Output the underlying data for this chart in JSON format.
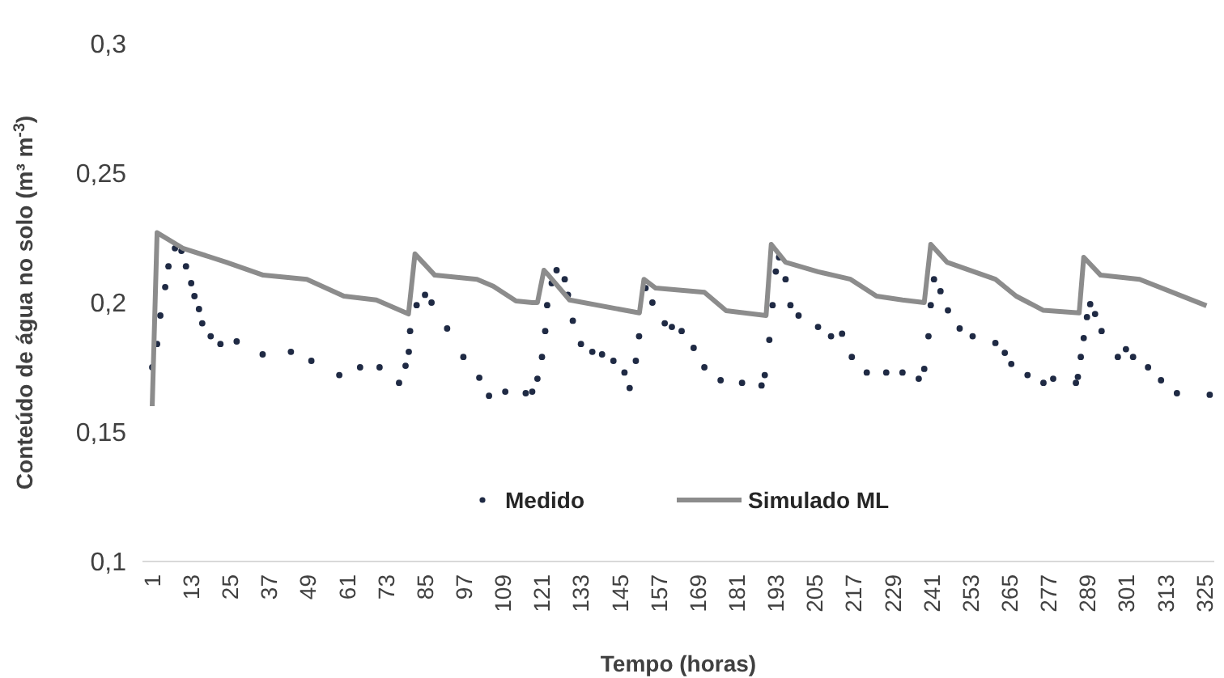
{
  "chart_data": {
    "type": "line",
    "xlabel": "Tempo (horas)",
    "ylabel": "Conteúdo de água no solo (m³ m$^{-3}$)",
    "xlim": [
      -2,
      328
    ],
    "xticks": [
      1,
      13,
      25,
      37,
      49,
      61,
      73,
      85,
      97,
      109,
      121,
      133,
      145,
      157,
      169,
      181,
      193,
      205,
      217,
      229,
      241,
      253,
      265,
      277,
      289,
      301,
      313,
      325
    ],
    "ylim": [
      0.1,
      0.3
    ],
    "yticks": [
      {
        "value": 0.1,
        "label": "0,1"
      },
      {
        "value": 0.15,
        "label": "0,15"
      },
      {
        "value": 0.2,
        "label": "0,2"
      },
      {
        "value": 0.25,
        "label": "0,25"
      },
      {
        "value": 0.3,
        "label": "0,3"
      }
    ],
    "grid": false,
    "legend": "bottom",
    "series": [
      {
        "name": "Medido",
        "type": "scatter",
        "marker": "circle",
        "color": "#1f2a44",
        "x": [
          1,
          2.5,
          3.5,
          5,
          6,
          8,
          10,
          11.4,
          13,
          14,
          15.4,
          16.4,
          19,
          22,
          27,
          35,
          43.7,
          50,
          58.6,
          65,
          71,
          77,
          79,
          80,
          80.4,
          82.4,
          85,
          87,
          91.8,
          96.8,
          101.7,
          104.7,
          109.7,
          116,
          118,
          119.6,
          121,
          122,
          122.6,
          124,
          125.5,
          128,
          129,
          130.5,
          133,
          136.5,
          139.5,
          143,
          146.4,
          148,
          149.9,
          150.9,
          152.9,
          155,
          158.8,
          161,
          164,
          167.7,
          171,
          176,
          182.6,
          188.6,
          189.6,
          191,
          192,
          193,
          194,
          196,
          197.5,
          200,
          206,
          210,
          213.4,
          216.4,
          221,
          227,
          232,
          237,
          238.7,
          240,
          240.7,
          241.7,
          243.7,
          246,
          249.6,
          253.6,
          260.6,
          263.5,
          265.5,
          270.5,
          275.4,
          278.4,
          285.4,
          286,
          286.9,
          287.8,
          288.8,
          289.8,
          291.3,
          293.3,
          298.3,
          300.8,
          303,
          307.6,
          311.6,
          316.5,
          326.6
        ],
        "values": [
          0.175,
          0.184,
          0.195,
          0.206,
          0.214,
          0.221,
          0.22,
          0.214,
          0.2075,
          0.2025,
          0.1975,
          0.192,
          0.187,
          0.184,
          0.185,
          0.18,
          0.181,
          0.1775,
          0.172,
          0.175,
          0.175,
          0.169,
          0.1756,
          0.181,
          0.189,
          0.199,
          0.203,
          0.2,
          0.19,
          0.179,
          0.171,
          0.164,
          0.1656,
          0.165,
          0.1656,
          0.1706,
          0.179,
          0.189,
          0.199,
          0.2075,
          0.2125,
          0.209,
          0.203,
          0.193,
          0.184,
          0.181,
          0.18,
          0.1775,
          0.173,
          0.167,
          0.1775,
          0.187,
          0.2056,
          0.2,
          0.192,
          0.1906,
          0.189,
          0.1825,
          0.175,
          0.17,
          0.169,
          0.168,
          0.172,
          0.1856,
          0.199,
          0.212,
          0.2175,
          0.209,
          0.199,
          0.195,
          0.1906,
          0.187,
          0.188,
          0.179,
          0.173,
          0.173,
          0.173,
          0.1706,
          0.1744,
          0.187,
          0.199,
          0.209,
          0.2044,
          0.197,
          0.19,
          0.187,
          0.1844,
          0.1806,
          0.1763,
          0.172,
          0.169,
          0.1706,
          0.169,
          0.1713,
          0.179,
          0.1863,
          0.1944,
          0.1994,
          0.1956,
          0.189,
          0.179,
          0.182,
          0.179,
          0.175,
          0.17,
          0.165,
          0.1644
        ]
      },
      {
        "name": "Simulado ML",
        "type": "line",
        "color": "#8c8c8c",
        "x": [
          1,
          2.5,
          10.4,
          23.8,
          35.2,
          48.6,
          60,
          70,
          79.9,
          81.9,
          88,
          101,
          106,
          113,
          118,
          119.6,
          121.6,
          123,
          129.5,
          151,
          152.4,
          156,
          171,
          177.7,
          190,
          191.6,
          196,
          206,
          216,
          224,
          232,
          238.7,
          240.7,
          245.7,
          260.6,
          267,
          275.4,
          286.4,
          287.8,
          293,
          305,
          325.6
        ],
        "values": [
          0.16,
          0.227,
          0.221,
          0.2156,
          0.2106,
          0.209,
          0.2025,
          0.201,
          0.1956,
          0.2188,
          0.2106,
          0.209,
          0.2063,
          0.2006,
          0.2,
          0.2,
          0.2125,
          0.2106,
          0.201,
          0.196,
          0.209,
          0.2056,
          0.204,
          0.1969,
          0.195,
          0.2225,
          0.2156,
          0.2119,
          0.209,
          0.2025,
          0.201,
          0.2,
          0.2225,
          0.2156,
          0.209,
          0.2025,
          0.197,
          0.196,
          0.2175,
          0.2106,
          0.209,
          0.1988
        ]
      }
    ]
  }
}
